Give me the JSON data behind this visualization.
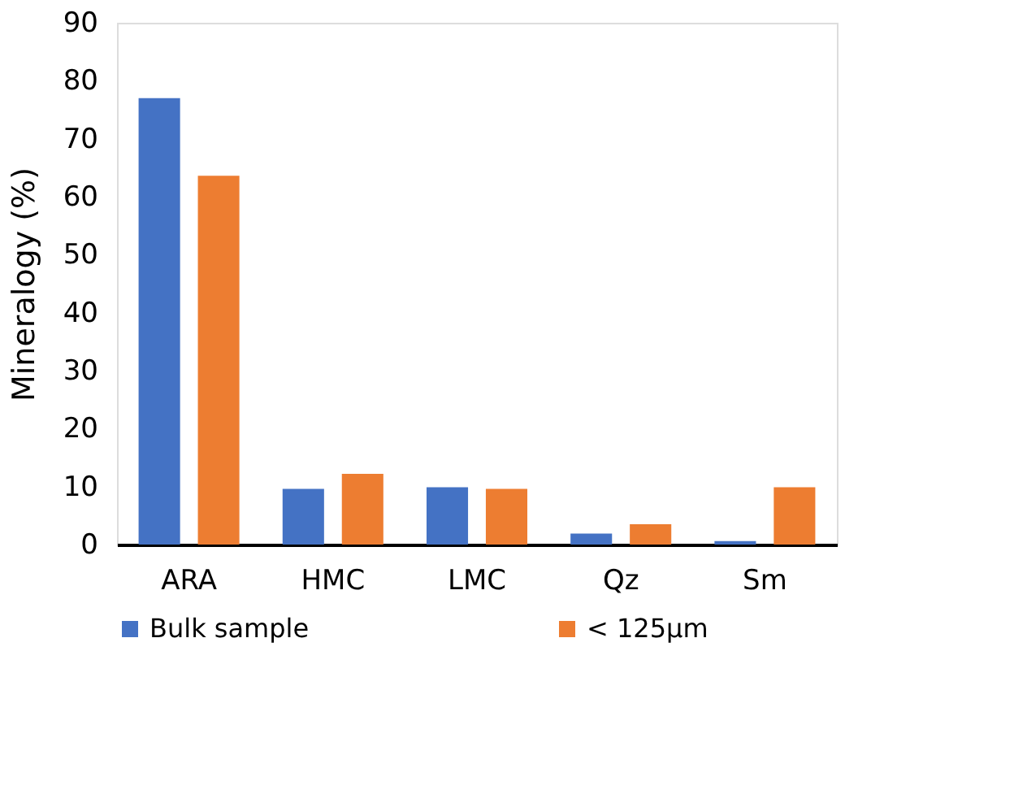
{
  "chart_data": {
    "type": "bar",
    "ylabel": "Mineralogy (%)",
    "categories": [
      "ARA",
      "HMC",
      "LMC",
      "Qz",
      "Sm"
    ],
    "series": [
      {
        "name": "Bulk sample",
        "color": "#4472c4",
        "values": [
          77.0,
          9.6,
          9.9,
          1.9,
          0.6
        ]
      },
      {
        "name": "< 125µm",
        "color": "#ed7d31",
        "values": [
          63.6,
          12.2,
          9.6,
          3.5,
          9.9
        ]
      }
    ],
    "ylim": [
      0,
      90
    ],
    "yticks": [
      0,
      10,
      20,
      30,
      40,
      50,
      60,
      70,
      80,
      90
    ],
    "grid": false,
    "legend": "bottom"
  }
}
